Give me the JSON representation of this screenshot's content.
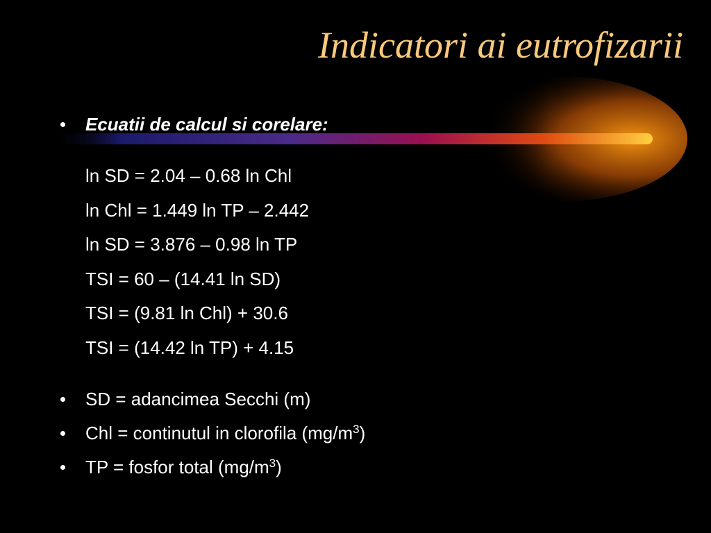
{
  "title": "Indicatori ai eutrofizarii",
  "heading": "Ecuatii de calcul si corelare:",
  "equations": [
    "ln SD = 2.04 – 0.68 ln Chl",
    "ln Chl = 1.449 ln TP – 2.442",
    "ln SD = 3.876 – 0.98 ln TP",
    "TSI = 60 – (14.41 ln SD)",
    "TSI = (9.81 ln Chl) + 30.6",
    "TSI = (14.42 ln TP) + 4.15"
  ],
  "definitions": [
    {
      "text": "SD = adancimea Secchi (m)"
    },
    {
      "text": "Chl = continutul in clorofila (mg/m",
      "sup": "3",
      "after": ")"
    },
    {
      "text": "TP = fosfor total (mg/m",
      "sup": "3",
      "after": ")"
    }
  ]
}
